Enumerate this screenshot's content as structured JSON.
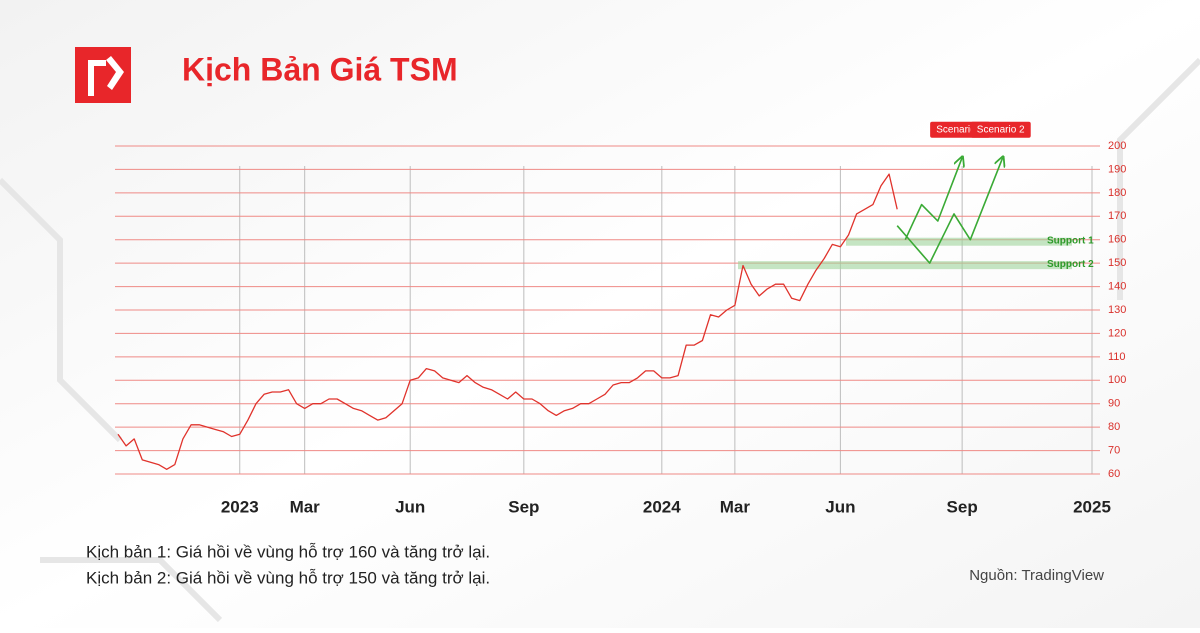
{
  "header": {
    "title": "Kịch Bản Giá TSM"
  },
  "chart_data": {
    "type": "line",
    "categories": [
      null,
      null,
      null,
      null,
      null,
      null,
      null,
      null,
      null,
      null,
      null,
      null,
      null,
      null,
      null,
      "2023",
      null,
      null,
      null,
      null,
      null,
      null,
      null,
      "Mar",
      null,
      null,
      null,
      null,
      null,
      null,
      null,
      null,
      null,
      null,
      null,
      null,
      "Jun",
      null,
      null,
      null,
      null,
      null,
      null,
      null,
      null,
      null,
      null,
      null,
      null,
      null,
      "Sep",
      null,
      null,
      null,
      null,
      null,
      null,
      null,
      null,
      null,
      null,
      null,
      null,
      null,
      null,
      null,
      null,
      "2024",
      null,
      null,
      null,
      null,
      null,
      null,
      null,
      null,
      "Mar",
      null,
      null,
      null,
      null,
      null,
      null,
      null,
      null,
      null,
      null,
      null,
      null,
      "Jun",
      null,
      null,
      null,
      null,
      null,
      null,
      null,
      null,
      null,
      null,
      null,
      null,
      null,
      null,
      "Sep",
      null,
      null,
      null,
      null,
      null,
      null,
      null,
      null,
      null,
      null,
      null,
      null,
      null,
      null,
      null,
      "2025"
    ],
    "series": [
      {
        "name": "TSM",
        "color": "#e0332c",
        "values": [
          77,
          72,
          75,
          66,
          65,
          64,
          62,
          64,
          75,
          81,
          81,
          80,
          79,
          78,
          76,
          77,
          83,
          90,
          94,
          95,
          95,
          96,
          90,
          88,
          90,
          90,
          92,
          92,
          90,
          88,
          87,
          85,
          83,
          84,
          87,
          90,
          100,
          101,
          105,
          104,
          101,
          100,
          99,
          102,
          99,
          97,
          96,
          94,
          92,
          95,
          92,
          92,
          90,
          87,
          85,
          87,
          88,
          90,
          90,
          92,
          94,
          98,
          99,
          99,
          101,
          104,
          104,
          101,
          101,
          102,
          115,
          115,
          117,
          128,
          127,
          130,
          132,
          149,
          141,
          136,
          139,
          141,
          141,
          135,
          134,
          141,
          147,
          152,
          158,
          157,
          162,
          171,
          173,
          175,
          183,
          188,
          173,
          null,
          null,
          null,
          null,
          null,
          null,
          null,
          null,
          null,
          null,
          null,
          null,
          null,
          null,
          null,
          null,
          null,
          null,
          null,
          null,
          null,
          null,
          null,
          null
        ]
      },
      {
        "name": "Scenario 1",
        "color": "#3aaa35",
        "values": [
          null,
          null,
          null,
          null,
          null,
          null,
          null,
          null,
          null,
          null,
          null,
          null,
          null,
          null,
          null,
          null,
          null,
          null,
          null,
          null,
          null,
          null,
          null,
          null,
          null,
          null,
          null,
          null,
          null,
          null,
          null,
          null,
          null,
          null,
          null,
          null,
          null,
          null,
          null,
          null,
          null,
          null,
          null,
          null,
          null,
          null,
          null,
          null,
          null,
          null,
          null,
          null,
          null,
          null,
          null,
          null,
          null,
          null,
          null,
          null,
          null,
          null,
          null,
          null,
          null,
          null,
          null,
          null,
          null,
          null,
          null,
          null,
          null,
          null,
          null,
          null,
          null,
          null,
          null,
          null,
          null,
          null,
          null,
          null,
          null,
          null,
          null,
          null,
          null,
          null,
          null,
          null,
          null,
          null,
          null,
          null,
          null,
          160,
          167.5,
          175,
          171.5,
          168,
          177,
          186,
          195,
          null,
          null,
          null,
          null,
          null,
          null,
          null,
          null,
          null,
          null,
          null,
          null,
          null,
          null,
          null,
          null
        ]
      },
      {
        "name": "Scenario 2",
        "color": "#3aaa35",
        "values": [
          null,
          null,
          null,
          null,
          null,
          null,
          null,
          null,
          null,
          null,
          null,
          null,
          null,
          null,
          null,
          null,
          null,
          null,
          null,
          null,
          null,
          null,
          null,
          null,
          null,
          null,
          null,
          null,
          null,
          null,
          null,
          null,
          null,
          null,
          null,
          null,
          null,
          null,
          null,
          null,
          null,
          null,
          null,
          null,
          null,
          null,
          null,
          null,
          null,
          null,
          null,
          null,
          null,
          null,
          null,
          null,
          null,
          null,
          null,
          null,
          null,
          null,
          null,
          null,
          null,
          null,
          null,
          null,
          null,
          null,
          null,
          null,
          null,
          null,
          null,
          null,
          null,
          null,
          null,
          null,
          null,
          null,
          null,
          null,
          null,
          null,
          null,
          null,
          null,
          null,
          null,
          null,
          null,
          null,
          null,
          null,
          166,
          162,
          158,
          154,
          150,
          157,
          164,
          171,
          165.5,
          160,
          168.75,
          177.5,
          186.25,
          195,
          null,
          null,
          null,
          null,
          null,
          null,
          null,
          null,
          null,
          null,
          null
        ]
      }
    ],
    "supports": [
      {
        "label": "Support 1",
        "value": 160
      },
      {
        "label": "Support 2",
        "value": 150
      }
    ],
    "ylim": [
      60,
      200
    ],
    "yticks": [
      60,
      70,
      80,
      90,
      100,
      110,
      120,
      130,
      140,
      150,
      160,
      170,
      180,
      190,
      200
    ],
    "grid": true
  },
  "notes": [
    "Kịch bản 1: Giá hồi về vùng hỗ trợ 160 và tăng trở lại.",
    "Kịch bản 2: Giá hồi về vùng hỗ trợ 150 và tăng trở lại."
  ],
  "source": "Nguồn: TradingView"
}
